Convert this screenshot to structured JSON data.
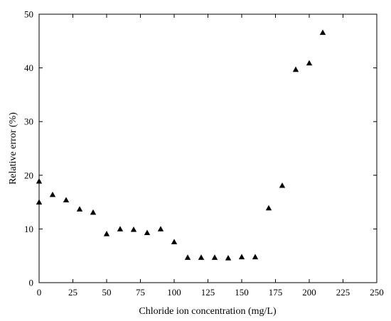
{
  "chart_data": {
    "type": "scatter",
    "title": "",
    "xlabel": "Chloride ion concentration (mg/L)",
    "ylabel": "Relative error (%)",
    "xlim": [
      0,
      250
    ],
    "ylim": [
      0,
      50
    ],
    "xticks": [
      0,
      25,
      50,
      75,
      100,
      125,
      150,
      175,
      200,
      225,
      250
    ],
    "yticks": [
      0,
      10,
      20,
      30,
      40,
      50
    ],
    "grid": false,
    "legend": "none",
    "marker": "triangle",
    "marker_color": "#000000",
    "series": [
      {
        "points": [
          {
            "x": 0,
            "y": 18.9
          },
          {
            "x": 0,
            "y": 15.0
          },
          {
            "x": 10,
            "y": 16.4
          },
          {
            "x": 20,
            "y": 15.4
          },
          {
            "x": 30,
            "y": 13.7
          },
          {
            "x": 40,
            "y": 13.1
          },
          {
            "x": 50,
            "y": 9.1
          },
          {
            "x": 60,
            "y": 10.0
          },
          {
            "x": 70,
            "y": 9.9
          },
          {
            "x": 80,
            "y": 9.3
          },
          {
            "x": 90,
            "y": 10.0
          },
          {
            "x": 100,
            "y": 7.6
          },
          {
            "x": 110,
            "y": 4.7
          },
          {
            "x": 120,
            "y": 4.7
          },
          {
            "x": 130,
            "y": 4.7
          },
          {
            "x": 140,
            "y": 4.6
          },
          {
            "x": 150,
            "y": 4.8
          },
          {
            "x": 160,
            "y": 4.8
          },
          {
            "x": 170,
            "y": 13.9
          },
          {
            "x": 180,
            "y": 18.1
          },
          {
            "x": 190,
            "y": 39.7
          },
          {
            "x": 200,
            "y": 40.9
          },
          {
            "x": 210,
            "y": 46.6
          }
        ]
      }
    ]
  }
}
